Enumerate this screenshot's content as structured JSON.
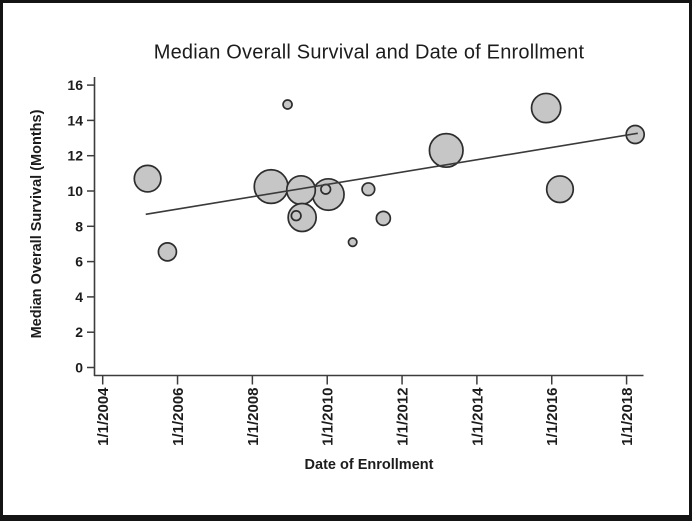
{
  "figure": {
    "background": "#ffffff",
    "border_color": "#141414"
  },
  "chart_data": {
    "type": "scatter",
    "subtype": "bubble",
    "title": "Median Overall Survival and Date of Enrollment",
    "xlabel": "Date of Enrollment",
    "ylabel": "Median Overall Survival (Months)",
    "x_ticks": [
      {
        "label": "1/1/2004",
        "year": 2004
      },
      {
        "label": "1/1/2006",
        "year": 2006
      },
      {
        "label": "1/1/2008",
        "year": 2008
      },
      {
        "label": "1/1/2010",
        "year": 2010
      },
      {
        "label": "1/1/2012",
        "year": 2012
      },
      {
        "label": "1/1/2014",
        "year": 2014
      },
      {
        "label": "1/1/2016",
        "year": 2016
      },
      {
        "label": "1/1/2018",
        "year": 2018
      }
    ],
    "y_ticks": [
      0,
      2,
      4,
      6,
      8,
      10,
      12,
      14,
      16
    ],
    "xlim_years": [
      2003.78,
      2018.46
    ],
    "ylim": [
      0,
      16
    ],
    "grid": false,
    "legend": false,
    "points": [
      {
        "x": 2005.2,
        "y": 10.7,
        "size": 13.3
      },
      {
        "x": 2005.73,
        "y": 6.55,
        "size": 9.0
      },
      {
        "x": 2008.5,
        "y": 10.25,
        "size": 16.8
      },
      {
        "x": 2008.94,
        "y": 14.9,
        "size": 4.5
      },
      {
        "x": 2009.17,
        "y": 8.6,
        "size": 4.8
      },
      {
        "x": 2009.3,
        "y": 10.05,
        "size": 14.3
      },
      {
        "x": 2009.33,
        "y": 8.5,
        "size": 14.0
      },
      {
        "x": 2009.96,
        "y": 10.1,
        "size": 4.8
      },
      {
        "x": 2010.03,
        "y": 9.8,
        "size": 15.7
      },
      {
        "x": 2010.68,
        "y": 7.1,
        "size": 4.2
      },
      {
        "x": 2011.1,
        "y": 10.1,
        "size": 6.3
      },
      {
        "x": 2011.5,
        "y": 8.45,
        "size": 7.0
      },
      {
        "x": 2013.18,
        "y": 12.3,
        "size": 16.8
      },
      {
        "x": 2015.85,
        "y": 14.7,
        "size": 14.6
      },
      {
        "x": 2016.22,
        "y": 10.1,
        "size": 13.3
      },
      {
        "x": 2018.23,
        "y": 13.2,
        "size": 9.0
      }
    ],
    "trend_line": {
      "x1": 2005.15,
      "y1": 8.68,
      "x2": 2018.3,
      "y2": 13.27
    },
    "colors": {
      "bubble_fill": "#c6c6c6",
      "bubble_stroke": "#2d2d2d",
      "trend_line": "#3a3a3a",
      "axis": "#3c3c3c",
      "text": "#1c1c1c"
    }
  }
}
